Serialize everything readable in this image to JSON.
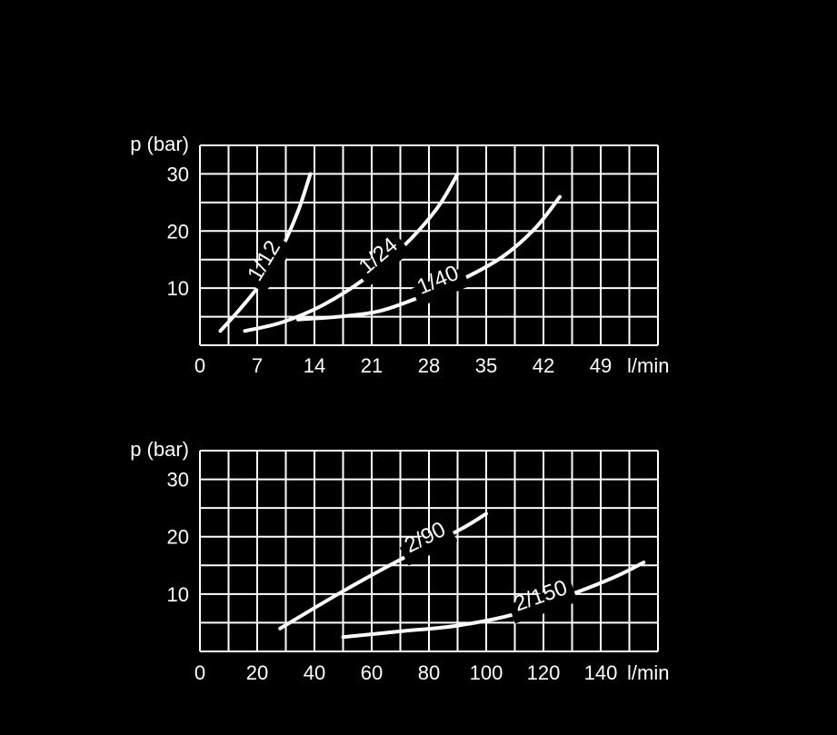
{
  "chart_data": [
    {
      "type": "line",
      "ylabel": "p (bar)",
      "xlabel": "l/min",
      "x_ticks": [
        0,
        7,
        14,
        21,
        28,
        35,
        42,
        49
      ],
      "y_ticks": [
        10,
        20,
        30
      ],
      "xlim": [
        0,
        56
      ],
      "ylim": [
        0,
        35
      ],
      "grid": true,
      "series": [
        {
          "name": "1/12",
          "x": [
            2.5,
            5,
            7.5,
            10,
            12,
            13.5
          ],
          "y": [
            2.5,
            6.5,
            11,
            17,
            23.5,
            30
          ]
        },
        {
          "name": "1/24",
          "x": [
            5.5,
            10,
            15,
            20,
            25,
            29,
            31.5
          ],
          "y": [
            2.5,
            4,
            7,
            11.5,
            17.5,
            24,
            30
          ]
        },
        {
          "name": "1/40",
          "x": [
            12,
            17,
            22,
            27,
            32,
            37,
            41,
            44
          ],
          "y": [
            4.5,
            5,
            6,
            8.5,
            11.5,
            15.5,
            20.5,
            26
          ]
        }
      ]
    },
    {
      "type": "line",
      "ylabel": "p (bar)",
      "xlabel": "l/min",
      "x_ticks": [
        0,
        20,
        40,
        60,
        80,
        100,
        120,
        140
      ],
      "y_ticks": [
        10,
        20,
        30
      ],
      "xlim": [
        0,
        160
      ],
      "ylim": [
        0,
        35
      ],
      "grid": true,
      "series": [
        {
          "name": "2/90",
          "x": [
            28,
            50,
            70,
            90,
            100
          ],
          "y": [
            4,
            10.5,
            16,
            21,
            24
          ]
        },
        {
          "name": "2/150",
          "x": [
            50,
            70,
            90,
            110,
            130,
            145,
            155
          ],
          "y": [
            2.5,
            3.5,
            4.5,
            6.5,
            10,
            13,
            15.5
          ]
        }
      ]
    }
  ]
}
